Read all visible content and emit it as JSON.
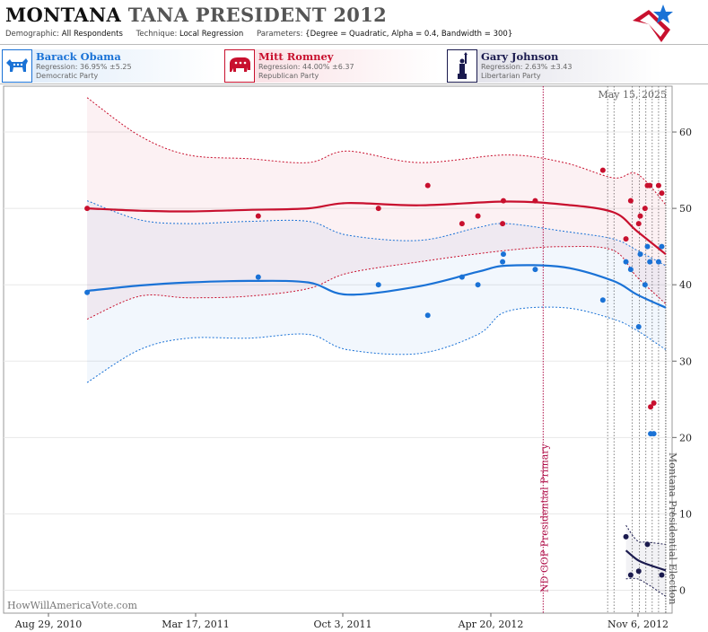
{
  "header": {
    "title_main": "MONTANA",
    "title_sub": "TANA PRESIDENT 2012",
    "demographic_label": "Demographic:",
    "demographic_value": "All Respondents",
    "technique_label": "Technique:",
    "technique_value": "Local Regression",
    "parameters_label": "Parameters:",
    "parameters_value": "{Degree = Quadratic, Alpha = 0.4, Bandwidth = 300}"
  },
  "candidates": [
    {
      "name": "Barack Obama",
      "regression": "Regression: 36.95% ±5.25",
      "party": "Democratic Party",
      "color": "#1a72d6",
      "icon": "donkey-icon"
    },
    {
      "name": "Mitt Romney",
      "regression": "Regression: 44.00% ±6.37",
      "party": "Republican Party",
      "color": "#c8102e",
      "icon": "elephant-icon"
    },
    {
      "name": "Gary Johnson",
      "regression": "Regression: 2.63% ±3.43",
      "party": "Libertarian Party",
      "color": "#1a1a4e",
      "icon": "liberty-statue-icon"
    }
  ],
  "date_stamp": "May 15, 2025",
  "watermark": "HowWillAmericaVote.com",
  "chart_data": {
    "type": "scatter",
    "x_ticks": [
      "Aug 29, 2010",
      "Mar 17, 2011",
      "Oct 3, 2011",
      "Apr 20, 2012",
      "Nov 6, 2012"
    ],
    "y_ticks": [
      0,
      10,
      20,
      30,
      40,
      50,
      60
    ],
    "ylim": [
      -3,
      66
    ],
    "xlim": [
      "2010-07-28",
      "2012-11-14"
    ],
    "annotations": [
      {
        "label": "ND GOP Presidential Primary",
        "date": "2012-06-05",
        "color": "#b0104a"
      },
      {
        "label": "Montana Presidential Election",
        "date": "2012-11-06",
        "color": "#555555"
      }
    ],
    "poll_lines": [
      "2012-08-25",
      "2012-09-02",
      "2012-09-25",
      "2012-10-04",
      "2012-10-12",
      "2012-10-20",
      "2012-10-28"
    ],
    "series": [
      {
        "name": "Mitt Romney",
        "color": "#c8102e",
        "points": [
          [
            "2010-11-10",
            50
          ],
          [
            "2011-06-13",
            49
          ],
          [
            "2011-11-11",
            50
          ],
          [
            "2012-01-12",
            53
          ],
          [
            "2012-02-24",
            48
          ],
          [
            "2012-03-15",
            49
          ],
          [
            "2012-04-15",
            48
          ],
          [
            "2012-04-16",
            51
          ],
          [
            "2012-05-26",
            51
          ],
          [
            "2012-08-19",
            55
          ],
          [
            "2012-09-17",
            46
          ],
          [
            "2012-09-23",
            51
          ],
          [
            "2012-10-03",
            48
          ],
          [
            "2012-10-05",
            49
          ],
          [
            "2012-10-11",
            50
          ],
          [
            "2012-10-14",
            53
          ],
          [
            "2012-10-17",
            53
          ],
          [
            "2012-10-18",
            24
          ],
          [
            "2012-10-22",
            24.5
          ],
          [
            "2012-10-28",
            53
          ],
          [
            "2012-11-01",
            52
          ]
        ],
        "regression": [
          [
            "2010-11-10",
            50.0
          ],
          [
            "2011-01-15",
            49.7
          ],
          [
            "2011-03-17",
            49.6
          ],
          [
            "2011-06-01",
            49.8
          ],
          [
            "2011-08-15",
            50.0
          ],
          [
            "2011-10-03",
            50.7
          ],
          [
            "2012-01-01",
            50.4
          ],
          [
            "2012-04-20",
            50.9
          ],
          [
            "2012-07-01",
            50.5
          ],
          [
            "2012-09-01",
            49.5
          ],
          [
            "2012-10-01",
            47.0
          ],
          [
            "2012-11-06",
            44.0
          ]
        ],
        "upper": [
          [
            "2010-11-10",
            64.5
          ],
          [
            "2011-01-15",
            59.5
          ],
          [
            "2011-03-17",
            57.0
          ],
          [
            "2011-06-01",
            56.5
          ],
          [
            "2011-08-15",
            56.0
          ],
          [
            "2011-10-03",
            57.5
          ],
          [
            "2012-01-01",
            56.0
          ],
          [
            "2012-04-20",
            57.0
          ],
          [
            "2012-07-01",
            56.0
          ],
          [
            "2012-09-01",
            54.0
          ],
          [
            "2012-10-01",
            54.5
          ],
          [
            "2012-11-06",
            50.5
          ]
        ],
        "lower": [
          [
            "2010-11-10",
            35.5
          ],
          [
            "2011-01-15",
            38.5
          ],
          [
            "2011-03-17",
            38.3
          ],
          [
            "2011-06-01",
            38.5
          ],
          [
            "2011-08-15",
            39.5
          ],
          [
            "2011-10-03",
            41.5
          ],
          [
            "2012-01-01",
            43.0
          ],
          [
            "2012-04-20",
            44.5
          ],
          [
            "2012-07-01",
            45.0
          ],
          [
            "2012-09-01",
            44.5
          ],
          [
            "2012-10-01",
            41.0
          ],
          [
            "2012-11-06",
            37.5
          ]
        ]
      },
      {
        "name": "Barack Obama",
        "color": "#1a72d6",
        "points": [
          [
            "2010-11-10",
            39
          ],
          [
            "2011-06-13",
            41
          ],
          [
            "2011-11-11",
            40
          ],
          [
            "2012-01-12",
            36
          ],
          [
            "2012-02-24",
            41
          ],
          [
            "2012-03-15",
            40
          ],
          [
            "2012-04-15",
            43
          ],
          [
            "2012-04-16",
            44
          ],
          [
            "2012-05-26",
            42
          ],
          [
            "2012-08-19",
            38
          ],
          [
            "2012-09-17",
            43
          ],
          [
            "2012-09-23",
            42
          ],
          [
            "2012-10-03",
            34.5
          ],
          [
            "2012-10-05",
            44
          ],
          [
            "2012-10-11",
            40
          ],
          [
            "2012-10-14",
            45
          ],
          [
            "2012-10-17",
            43
          ],
          [
            "2012-10-18",
            20.5
          ],
          [
            "2012-10-22",
            20.5
          ],
          [
            "2012-10-28",
            43
          ],
          [
            "2012-11-01",
            45
          ]
        ],
        "regression": [
          [
            "2010-11-10",
            39.2
          ],
          [
            "2011-01-15",
            39.9
          ],
          [
            "2011-03-17",
            40.3
          ],
          [
            "2011-06-01",
            40.5
          ],
          [
            "2011-08-15",
            40.3
          ],
          [
            "2011-10-03",
            38.7
          ],
          [
            "2012-01-01",
            39.8
          ],
          [
            "2012-03-15",
            41.7
          ],
          [
            "2012-04-20",
            42.5
          ],
          [
            "2012-07-01",
            42.3
          ],
          [
            "2012-09-01",
            40.5
          ],
          [
            "2012-10-01",
            38.7
          ],
          [
            "2012-11-06",
            37.0
          ]
        ],
        "upper": [
          [
            "2010-11-10",
            51.0
          ],
          [
            "2011-01-15",
            48.5
          ],
          [
            "2011-03-17",
            48.0
          ],
          [
            "2011-06-01",
            48.3
          ],
          [
            "2011-08-15",
            48.3
          ],
          [
            "2011-10-03",
            46.5
          ],
          [
            "2012-01-01",
            45.8
          ],
          [
            "2012-03-15",
            47.5
          ],
          [
            "2012-04-20",
            48.0
          ],
          [
            "2012-07-01",
            47.0
          ],
          [
            "2012-09-01",
            46.0
          ],
          [
            "2012-10-01",
            44.5
          ],
          [
            "2012-11-06",
            42.5
          ]
        ],
        "lower": [
          [
            "2010-11-10",
            27.2
          ],
          [
            "2011-01-15",
            31.5
          ],
          [
            "2011-03-17",
            33.0
          ],
          [
            "2011-06-01",
            33.0
          ],
          [
            "2011-08-15",
            33.5
          ],
          [
            "2011-10-03",
            31.5
          ],
          [
            "2012-01-01",
            31.0
          ],
          [
            "2012-03-15",
            33.5
          ],
          [
            "2012-04-20",
            36.5
          ],
          [
            "2012-07-01",
            37.0
          ],
          [
            "2012-09-01",
            35.5
          ],
          [
            "2012-10-01",
            34.0
          ],
          [
            "2012-11-06",
            31.5
          ]
        ]
      },
      {
        "name": "Gary Johnson",
        "color": "#1a1a4e",
        "points": [
          [
            "2012-09-17",
            7
          ],
          [
            "2012-09-23",
            2
          ],
          [
            "2012-10-03",
            2.5
          ],
          [
            "2012-10-14",
            6
          ],
          [
            "2012-11-01",
            2
          ]
        ],
        "regression": [
          [
            "2012-09-17",
            5.2
          ],
          [
            "2012-10-01",
            4.0
          ],
          [
            "2012-10-14",
            3.4
          ],
          [
            "2012-11-06",
            2.6
          ]
        ],
        "upper": [
          [
            "2012-09-17",
            8.5
          ],
          [
            "2012-10-01",
            6.5
          ],
          [
            "2012-10-14",
            6.3
          ],
          [
            "2012-11-06",
            6.0
          ]
        ],
        "lower": [
          [
            "2012-09-17",
            1.5
          ],
          [
            "2012-10-01",
            1.5
          ],
          [
            "2012-10-14",
            0.8
          ],
          [
            "2012-11-06",
            -0.8
          ]
        ]
      }
    ]
  }
}
